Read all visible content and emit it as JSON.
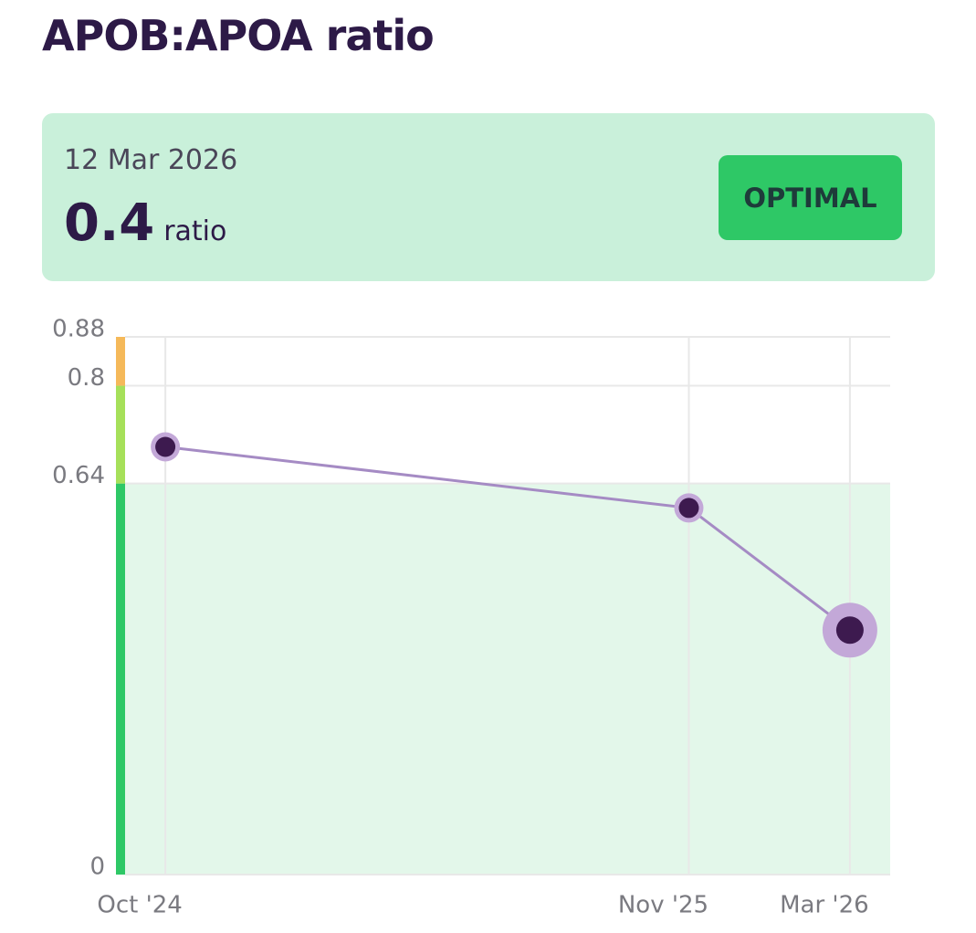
{
  "header": {
    "title": "APOB:APOA ratio"
  },
  "summary": {
    "date": "12 Mar 2026",
    "value": "0.4",
    "unit": "ratio",
    "status": "OPTIMAL"
  },
  "chart_data": {
    "type": "line",
    "x": [
      "2024-10",
      "2025-11",
      "2026-03"
    ],
    "values": [
      0.7,
      0.6,
      0.4
    ],
    "color": "#a58bc4",
    "xlim": [
      "2024-09",
      "2026-04"
    ],
    "xticks": [
      {
        "value": "2024-10",
        "label": "Oct '24"
      },
      {
        "value": "2025-11",
        "label": "Nov '25"
      },
      {
        "value": "2026-03",
        "label": "Mar '26"
      }
    ],
    "ylim": [
      0,
      0.88
    ],
    "yticks": [
      0,
      0.64,
      0.8,
      0.88
    ],
    "ranges": [
      {
        "from": 0,
        "to": 0.64,
        "color": "#2ec866"
      },
      {
        "from": 0.64,
        "to": 0.8,
        "color": "#a6e05a"
      },
      {
        "from": 0.8,
        "to": 0.88,
        "color": "#f5b95a"
      }
    ],
    "grid": true
  }
}
